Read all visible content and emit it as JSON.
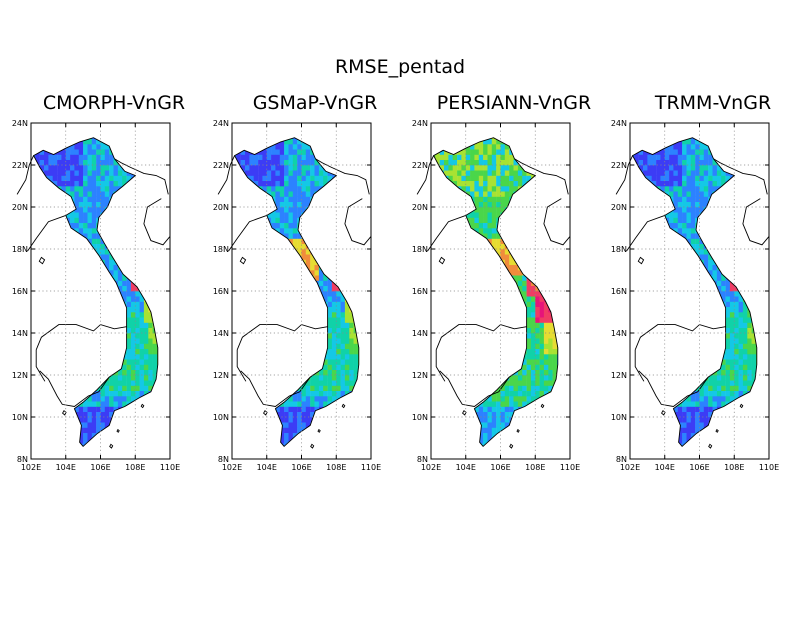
{
  "figure": {
    "title": "RMSE_pentad"
  },
  "axes": {
    "lon_range": [
      102,
      110
    ],
    "lat_range": [
      8,
      24
    ],
    "lon_ticks": [
      "102E",
      "104E",
      "106E",
      "108E",
      "110E"
    ],
    "lat_ticks": [
      "8N",
      "10N",
      "12N",
      "14N",
      "16N",
      "18N",
      "20N",
      "22N",
      "24N"
    ],
    "gridlines": "dotted, every 2 degrees"
  },
  "panels": [
    {
      "title": "CMORPH-VnGR",
      "field": {
        "north": "blue",
        "north_west_tip": "dark blue",
        "north_east": "cyan",
        "central_coast_16N": "red spot",
        "central_coast_15N": "yellow-green",
        "central_highlands": "cyan-green",
        "south": "blue",
        "mekong_delta": "dark blue"
      }
    },
    {
      "title": "GSMaP-VnGR",
      "field": {
        "north": "blue",
        "north_west_tip": "dark blue",
        "north_east": "cyan",
        "central_coast_18N": "orange",
        "central_coast_16N": "red spot",
        "central_coast_15N": "yellow",
        "south": "blue",
        "mekong_delta": "dark blue"
      }
    },
    {
      "title": "PERSIANN-VnGR",
      "field": {
        "north": "green",
        "north_west_tip": "yellow-green",
        "north_centre": "cyan",
        "central_coast_17N": "orange",
        "central_coast_15N": "red",
        "central_highlands": "green",
        "south": "cyan",
        "mekong_delta": "blue"
      }
    },
    {
      "title": "TRMM-VnGR",
      "field": {
        "north": "blue",
        "north_west_tip": "dark blue",
        "north_east": "cyan",
        "central_coast_16N": "red spot",
        "central_coast_15N": "green",
        "central_highlands": "cyan-green",
        "south": "blue",
        "mekong_delta": "dark blue"
      }
    }
  ],
  "colors": {
    "dark_blue": "#3c3cf5",
    "blue": "#2c82ff",
    "cyan": "#14c8e6",
    "cyan_green": "#10d2a8",
    "green": "#4ad64a",
    "yellow_green": "#a8e232",
    "yellow": "#e6dc32",
    "orange": "#f08c3c",
    "red": "#f03c64",
    "magenta": "#e6147a"
  }
}
